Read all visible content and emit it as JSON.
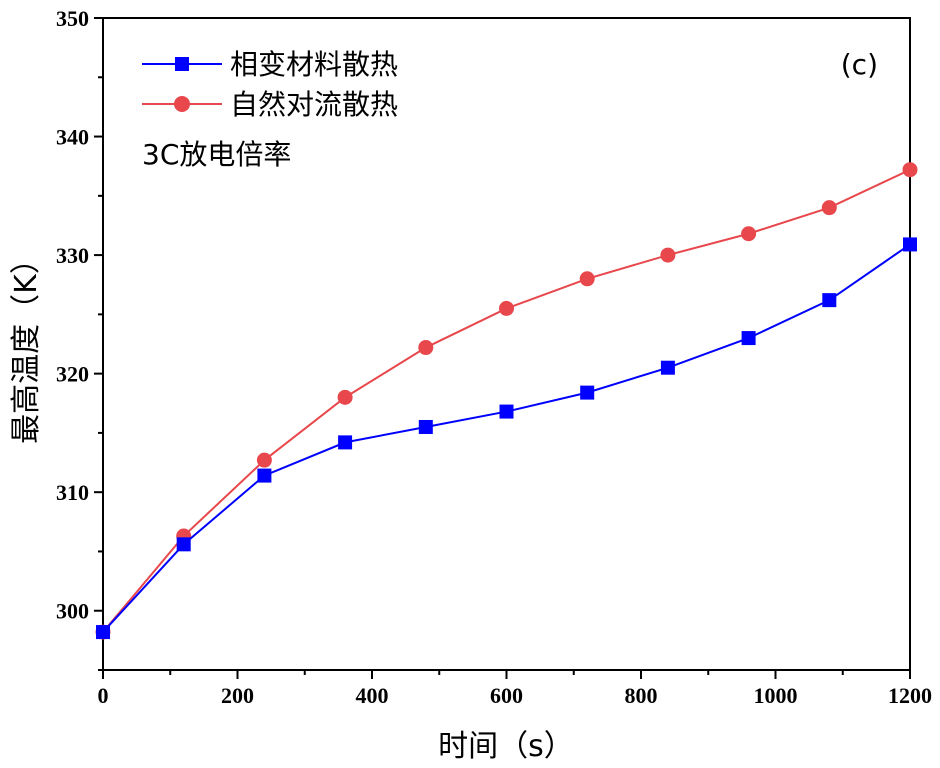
{
  "chart_data": {
    "type": "line",
    "xlabel": "时间（s）",
    "ylabel": "最高温度（K）",
    "xlim": [
      0,
      1200
    ],
    "ylim": [
      295,
      350
    ],
    "xticks": [
      0,
      200,
      400,
      600,
      800,
      1000,
      1200
    ],
    "yticks": [
      300,
      310,
      320,
      330,
      340,
      350
    ],
    "x": [
      0,
      120,
      240,
      360,
      480,
      600,
      720,
      840,
      960,
      1080,
      1200
    ],
    "series": [
      {
        "name": "相变材料散热",
        "color": "#0000ff",
        "marker": "square",
        "values": [
          298.2,
          305.6,
          311.4,
          314.2,
          315.5,
          316.8,
          318.4,
          320.5,
          323.0,
          326.2,
          330.9
        ]
      },
      {
        "name": "自然对流散热",
        "color": "#e8474c",
        "marker": "circle",
        "values": [
          298.2,
          306.3,
          312.7,
          318.0,
          322.2,
          325.5,
          328.0,
          330.0,
          331.8,
          334.0,
          337.2
        ]
      }
    ],
    "annotations": [
      "(c)",
      "3C放电倍率"
    ],
    "legend_position": "top-left",
    "grid": false
  }
}
